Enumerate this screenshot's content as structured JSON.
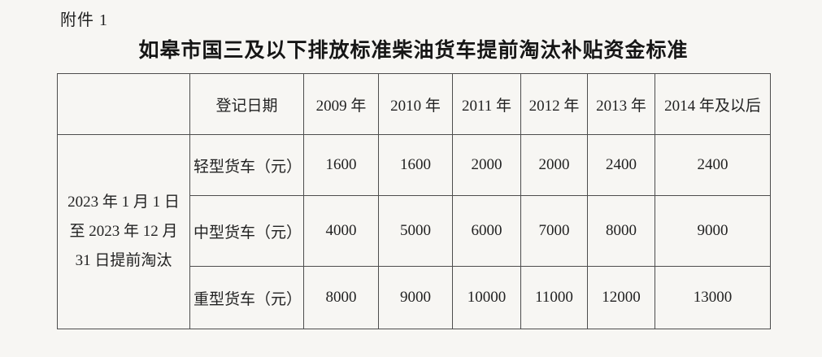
{
  "page": {
    "attachment_label": "附件 1",
    "title": "如皋市国三及以下排放标准柴油货车提前淘汰补贴资金标准"
  },
  "table": {
    "period_label": "2023 年 1 月 1 日\n至 2023 年 12 月\n31 日提前淘汰",
    "header": {
      "corner": "",
      "register_date": "登记日期",
      "years": [
        "2009 年",
        "2010 年",
        "2011 年",
        "2012 年",
        "2013 年",
        "2014 年及以后"
      ]
    },
    "rows": [
      {
        "label": "轻型货车（元）",
        "values": [
          "1600",
          "1600",
          "2000",
          "2000",
          "2400",
          "2400"
        ]
      },
      {
        "label": "中型货车（元）",
        "values": [
          "4000",
          "5000",
          "6000",
          "7000",
          "8000",
          "9000"
        ]
      },
      {
        "label": "重型货车（元）",
        "values": [
          "8000",
          "9000",
          "10000",
          "11000",
          "12000",
          "13000"
        ]
      }
    ]
  },
  "colors": {
    "paper": "#f7f6f3",
    "text": "#1e1e1e",
    "border": "#4d4d4d"
  }
}
